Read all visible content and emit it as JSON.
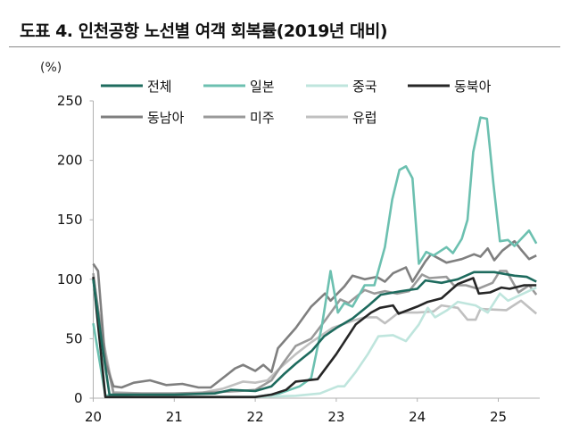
{
  "title": "도표 4. 인천공항 노선별 여객 회복률(2019년 대비)",
  "chart_data": {
    "type": "line",
    "title": "도표 4. 인천공항 노선별 여객 회복률(2019년 대비)",
    "ylabel": "(%)",
    "xlabel": "",
    "ylim": [
      0,
      250
    ],
    "yticks": [
      "0",
      "50",
      "100",
      "150",
      "200",
      "250"
    ],
    "xlim": [
      2020,
      2025.5
    ],
    "xticks": [
      "20",
      "21",
      "22",
      "23",
      "24",
      "25"
    ],
    "grid": false,
    "legend_position": "top",
    "series": [
      {
        "name": "전체",
        "color": "#1e6b5e",
        "points": [
          [
            2020.0,
            100
          ],
          [
            2020.12,
            40
          ],
          [
            2020.2,
            3
          ],
          [
            2020.6,
            3
          ],
          [
            2021.0,
            3
          ],
          [
            2021.5,
            4
          ],
          [
            2021.7,
            7
          ],
          [
            2022.0,
            6
          ],
          [
            2022.2,
            10
          ],
          [
            2022.35,
            20
          ],
          [
            2022.5,
            29
          ],
          [
            2022.7,
            40
          ],
          [
            2022.85,
            52
          ],
          [
            2023.0,
            59
          ],
          [
            2023.2,
            67
          ],
          [
            2023.4,
            78
          ],
          [
            2023.55,
            87
          ],
          [
            2023.8,
            90
          ],
          [
            2024.0,
            92
          ],
          [
            2024.1,
            99
          ],
          [
            2024.3,
            97
          ],
          [
            2024.5,
            100
          ],
          [
            2024.7,
            106
          ],
          [
            2024.95,
            106
          ],
          [
            2025.2,
            103
          ],
          [
            2025.35,
            102
          ],
          [
            2025.47,
            98
          ]
        ]
      },
      {
        "name": "일본",
        "color": "#6cc0b0",
        "points": [
          [
            2020.0,
            63
          ],
          [
            2020.15,
            2
          ],
          [
            2020.5,
            1
          ],
          [
            2021.0,
            1
          ],
          [
            2021.5,
            1
          ],
          [
            2022.0,
            1
          ],
          [
            2022.3,
            4
          ],
          [
            2022.55,
            10
          ],
          [
            2022.69,
            17
          ],
          [
            2022.82,
            60
          ],
          [
            2022.93,
            107
          ],
          [
            2023.02,
            72
          ],
          [
            2023.1,
            80
          ],
          [
            2023.2,
            77
          ],
          [
            2023.35,
            95
          ],
          [
            2023.47,
            95
          ],
          [
            2023.6,
            127
          ],
          [
            2023.69,
            167
          ],
          [
            2023.78,
            192
          ],
          [
            2023.86,
            195
          ],
          [
            2023.94,
            185
          ],
          [
            2024.02,
            113
          ],
          [
            2024.11,
            123
          ],
          [
            2024.2,
            120
          ],
          [
            2024.36,
            127
          ],
          [
            2024.44,
            122
          ],
          [
            2024.55,
            134
          ],
          [
            2024.62,
            150
          ],
          [
            2024.69,
            207
          ],
          [
            2024.78,
            236
          ],
          [
            2024.86,
            235
          ],
          [
            2024.94,
            180
          ],
          [
            2025.02,
            132
          ],
          [
            2025.12,
            133
          ],
          [
            2025.2,
            128
          ],
          [
            2025.38,
            141
          ],
          [
            2025.47,
            130
          ]
        ]
      },
      {
        "name": "중국",
        "color": "#bfe5dd",
        "points": [
          [
            2020.0,
            100
          ],
          [
            2020.15,
            3
          ],
          [
            2020.5,
            1
          ],
          [
            2021.0,
            1
          ],
          [
            2021.5,
            1
          ],
          [
            2022.0,
            1
          ],
          [
            2022.5,
            2
          ],
          [
            2022.8,
            4
          ],
          [
            2023.02,
            10
          ],
          [
            2023.1,
            10
          ],
          [
            2023.24,
            22
          ],
          [
            2023.39,
            37
          ],
          [
            2023.52,
            52
          ],
          [
            2023.7,
            53
          ],
          [
            2023.86,
            48
          ],
          [
            2024.02,
            62
          ],
          [
            2024.13,
            76
          ],
          [
            2024.22,
            68
          ],
          [
            2024.37,
            74
          ],
          [
            2024.5,
            81
          ],
          [
            2024.72,
            78
          ],
          [
            2024.87,
            72
          ],
          [
            2025.02,
            88
          ],
          [
            2025.12,
            82
          ],
          [
            2025.28,
            87
          ],
          [
            2025.47,
            93
          ]
        ]
      },
      {
        "name": "동북아",
        "color": "#262626",
        "points": [
          [
            2020.0,
            102
          ],
          [
            2020.15,
            1
          ],
          [
            2020.5,
            1
          ],
          [
            2021.0,
            1
          ],
          [
            2021.5,
            1
          ],
          [
            2022.0,
            1
          ],
          [
            2022.2,
            3
          ],
          [
            2022.38,
            7
          ],
          [
            2022.5,
            14
          ],
          [
            2022.77,
            16
          ],
          [
            2023.0,
            37
          ],
          [
            2023.24,
            62
          ],
          [
            2023.43,
            72
          ],
          [
            2023.54,
            76
          ],
          [
            2023.7,
            78
          ],
          [
            2023.77,
            71
          ],
          [
            2024.0,
            77
          ],
          [
            2024.13,
            81
          ],
          [
            2024.3,
            84
          ],
          [
            2024.5,
            96
          ],
          [
            2024.69,
            101
          ],
          [
            2024.76,
            88
          ],
          [
            2024.9,
            89
          ],
          [
            2025.04,
            93
          ],
          [
            2025.14,
            92
          ],
          [
            2025.32,
            95
          ],
          [
            2025.47,
            95
          ]
        ]
      },
      {
        "name": "동남아",
        "color": "#7f7f7f",
        "points": [
          [
            2020.0,
            113
          ],
          [
            2020.06,
            107
          ],
          [
            2020.15,
            30
          ],
          [
            2020.25,
            10
          ],
          [
            2020.35,
            9
          ],
          [
            2020.5,
            13
          ],
          [
            2020.7,
            15
          ],
          [
            2020.9,
            11
          ],
          [
            2021.1,
            12
          ],
          [
            2021.3,
            9
          ],
          [
            2021.45,
            9
          ],
          [
            2021.6,
            17
          ],
          [
            2021.75,
            25
          ],
          [
            2021.85,
            28
          ],
          [
            2022.0,
            23
          ],
          [
            2022.1,
            28
          ],
          [
            2022.2,
            22
          ],
          [
            2022.28,
            42
          ],
          [
            2022.5,
            59
          ],
          [
            2022.69,
            77
          ],
          [
            2022.86,
            88
          ],
          [
            2022.93,
            82
          ],
          [
            2023.1,
            94
          ],
          [
            2023.2,
            103
          ],
          [
            2023.35,
            100
          ],
          [
            2023.5,
            102
          ],
          [
            2023.6,
            98
          ],
          [
            2023.7,
            105
          ],
          [
            2023.86,
            110
          ],
          [
            2023.94,
            98
          ],
          [
            2024.1,
            115
          ],
          [
            2024.17,
            121
          ],
          [
            2024.36,
            114
          ],
          [
            2024.55,
            117
          ],
          [
            2024.7,
            121
          ],
          [
            2024.78,
            119
          ],
          [
            2024.87,
            126
          ],
          [
            2024.95,
            116
          ],
          [
            2025.05,
            124
          ],
          [
            2025.2,
            132
          ],
          [
            2025.28,
            125
          ],
          [
            2025.38,
            117
          ],
          [
            2025.47,
            120
          ]
        ]
      },
      {
        "name": "미주",
        "color": "#9a9a9a",
        "points": [
          [
            2020.0,
            105
          ],
          [
            2020.12,
            45
          ],
          [
            2020.25,
            4
          ],
          [
            2020.6,
            4
          ],
          [
            2021.0,
            4
          ],
          [
            2021.5,
            5
          ],
          [
            2021.8,
            6
          ],
          [
            2022.0,
            7
          ],
          [
            2022.2,
            15
          ],
          [
            2022.35,
            30
          ],
          [
            2022.5,
            44
          ],
          [
            2022.69,
            50
          ],
          [
            2022.88,
            67
          ],
          [
            2023.05,
            83
          ],
          [
            2023.15,
            80
          ],
          [
            2023.35,
            91
          ],
          [
            2023.47,
            88
          ],
          [
            2023.6,
            90
          ],
          [
            2023.75,
            88
          ],
          [
            2023.9,
            90
          ],
          [
            2024.06,
            104
          ],
          [
            2024.15,
            101
          ],
          [
            2024.36,
            102
          ],
          [
            2024.45,
            95
          ],
          [
            2024.6,
            95
          ],
          [
            2024.75,
            92
          ],
          [
            2024.93,
            97
          ],
          [
            2025.02,
            107
          ],
          [
            2025.1,
            107
          ],
          [
            2025.25,
            89
          ],
          [
            2025.38,
            95
          ],
          [
            2025.47,
            87
          ]
        ]
      },
      {
        "name": "유럽",
        "color": "#c0c0c0",
        "points": [
          [
            2020.0,
            100
          ],
          [
            2020.12,
            50
          ],
          [
            2020.25,
            5
          ],
          [
            2020.6,
            4
          ],
          [
            2021.0,
            4
          ],
          [
            2021.3,
            4
          ],
          [
            2021.6,
            8
          ],
          [
            2021.85,
            14
          ],
          [
            2022.0,
            13
          ],
          [
            2022.15,
            15
          ],
          [
            2022.3,
            25
          ],
          [
            2022.5,
            37
          ],
          [
            2022.69,
            47
          ],
          [
            2022.95,
            59
          ],
          [
            2023.2,
            65
          ],
          [
            2023.35,
            68
          ],
          [
            2023.5,
            68
          ],
          [
            2023.6,
            63
          ],
          [
            2023.77,
            72
          ],
          [
            2024.0,
            72
          ],
          [
            2024.2,
            73
          ],
          [
            2024.3,
            78
          ],
          [
            2024.5,
            76
          ],
          [
            2024.62,
            66
          ],
          [
            2024.72,
            66
          ],
          [
            2024.78,
            75
          ],
          [
            2025.1,
            74
          ],
          [
            2025.28,
            82
          ],
          [
            2025.47,
            71
          ]
        ]
      }
    ]
  }
}
